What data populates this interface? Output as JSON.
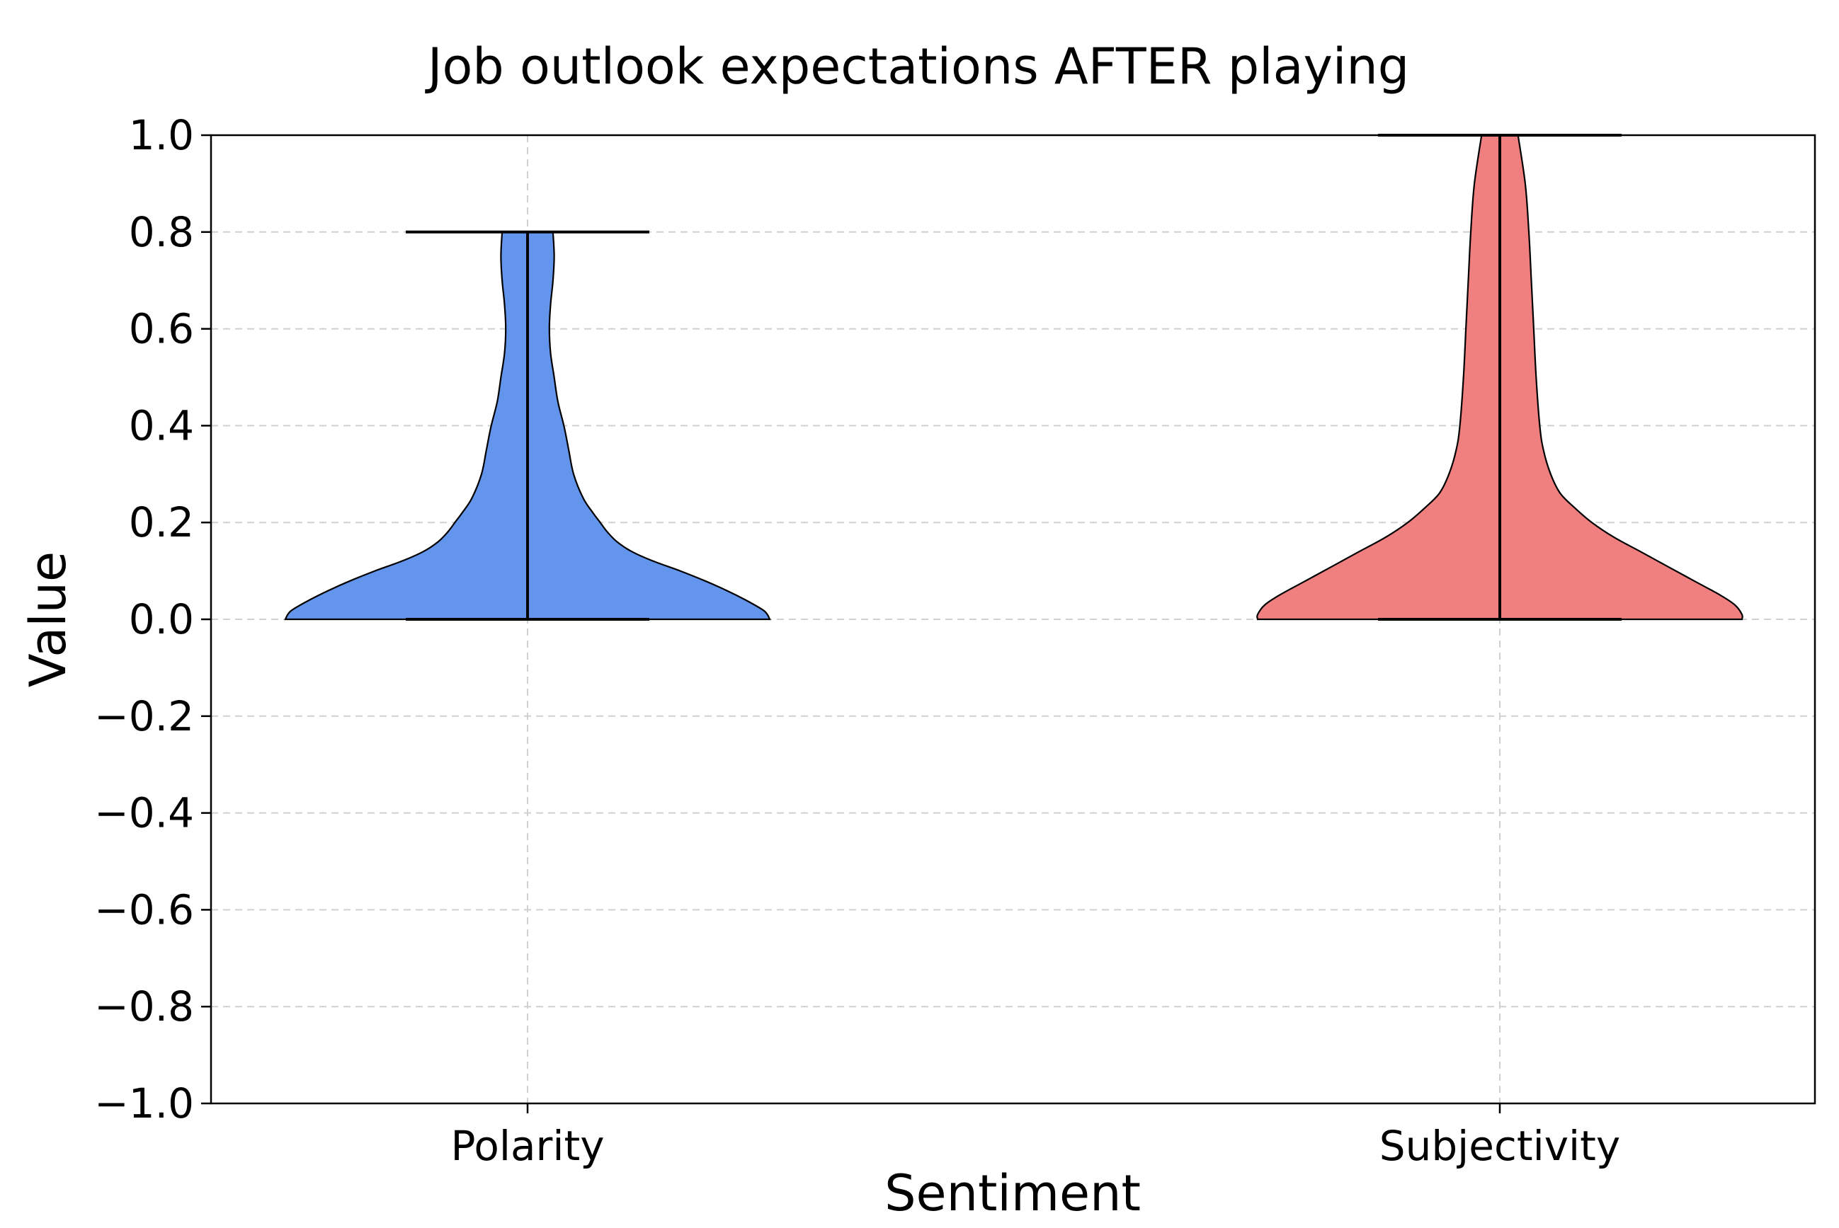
{
  "chart_data": {
    "type": "violin",
    "title": "Job outlook expectations AFTER playing",
    "xlabel": "Sentiment",
    "ylabel": "Value",
    "ylim": [
      -1.0,
      1.0
    ],
    "yticks": [
      1.0,
      0.8,
      0.6,
      0.4,
      0.2,
      0.0,
      -0.2,
      -0.4,
      -0.6,
      -0.8,
      -1.0
    ],
    "ytick_labels": [
      "1.0",
      "0.8",
      "0.6",
      "0.4",
      "0.2",
      "0.0",
      "−0.2",
      "−0.4",
      "−0.6",
      "−0.8",
      "−1.0"
    ],
    "categories": [
      "Polarity",
      "Subjectivity"
    ],
    "grid": true,
    "series": [
      {
        "category": "Polarity",
        "color": "#6495ED",
        "min": 0.0,
        "max": 0.8,
        "density": [
          [
            0.0,
            1.0
          ],
          [
            0.01,
            0.99
          ],
          [
            0.02,
            0.97
          ],
          [
            0.04,
            0.9
          ],
          [
            0.06,
            0.82
          ],
          [
            0.08,
            0.73
          ],
          [
            0.1,
            0.63
          ],
          [
            0.12,
            0.52
          ],
          [
            0.14,
            0.43
          ],
          [
            0.16,
            0.37
          ],
          [
            0.18,
            0.33
          ],
          [
            0.2,
            0.3
          ],
          [
            0.22,
            0.27
          ],
          [
            0.25,
            0.23
          ],
          [
            0.3,
            0.19
          ],
          [
            0.35,
            0.17
          ],
          [
            0.4,
            0.15
          ],
          [
            0.45,
            0.125
          ],
          [
            0.5,
            0.11
          ],
          [
            0.55,
            0.095
          ],
          [
            0.6,
            0.09
          ],
          [
            0.65,
            0.095
          ],
          [
            0.7,
            0.105
          ],
          [
            0.75,
            0.11
          ],
          [
            0.8,
            0.105
          ]
        ]
      },
      {
        "category": "Subjectivity",
        "color": "#F08080",
        "min": 0.0,
        "max": 1.0,
        "density": [
          [
            0.0,
            1.0
          ],
          [
            0.01,
            1.0
          ],
          [
            0.03,
            0.97
          ],
          [
            0.05,
            0.91
          ],
          [
            0.08,
            0.8
          ],
          [
            0.11,
            0.69
          ],
          [
            0.14,
            0.58
          ],
          [
            0.17,
            0.47
          ],
          [
            0.2,
            0.38
          ],
          [
            0.23,
            0.31
          ],
          [
            0.26,
            0.25
          ],
          [
            0.3,
            0.21
          ],
          [
            0.35,
            0.18
          ],
          [
            0.4,
            0.165
          ],
          [
            0.5,
            0.15
          ],
          [
            0.6,
            0.14
          ],
          [
            0.7,
            0.13
          ],
          [
            0.8,
            0.12
          ],
          [
            0.9,
            0.105
          ],
          [
            1.0,
            0.075
          ]
        ]
      }
    ]
  }
}
